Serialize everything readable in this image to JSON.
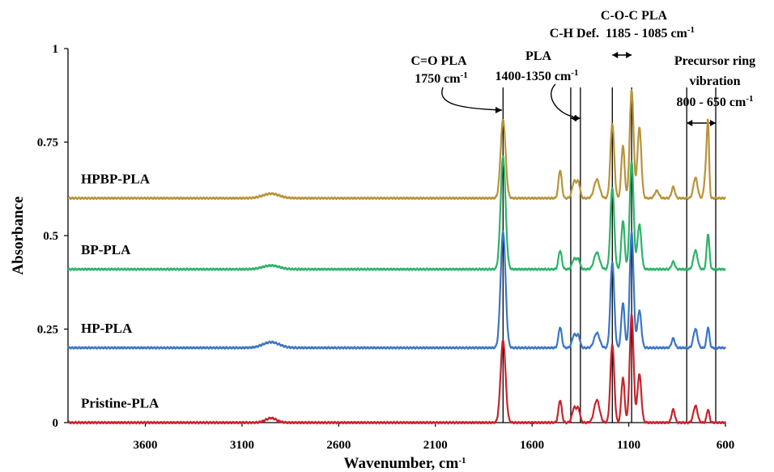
{
  "chart_data": {
    "type": "line",
    "xlabel": "Wavenumber, cm",
    "xlabel_sup": "-1",
    "ylabel": "Absorbance",
    "xlim": [
      4000,
      600
    ],
    "ylim": [
      0,
      1
    ],
    "x_reversed": true,
    "xticks": [
      3600,
      3100,
      2600,
      2100,
      1600,
      1100,
      600
    ],
    "yticks": [
      0,
      0.25,
      0.5,
      0.75,
      1
    ],
    "ytick_labels": [
      "0",
      "0.25",
      "0.5",
      "0.75",
      "1"
    ],
    "grid": false,
    "series": [
      {
        "name": "HPBP-PLA",
        "color": "#b8933a",
        "offset": 0.6,
        "peaks": [
          [
            2950,
            0.012,
            60
          ],
          [
            1750,
            0.21,
            18
          ],
          [
            1455,
            0.075,
            12
          ],
          [
            1382,
            0.045,
            15
          ],
          [
            1360,
            0.04,
            12
          ],
          [
            1265,
            0.05,
            20
          ],
          [
            1185,
            0.2,
            14
          ],
          [
            1130,
            0.14,
            12
          ],
          [
            1085,
            0.29,
            14
          ],
          [
            1045,
            0.19,
            14
          ],
          [
            955,
            0.02,
            15
          ],
          [
            870,
            0.03,
            12
          ],
          [
            755,
            0.055,
            15
          ],
          [
            700,
            0.08,
            12
          ],
          [
            690,
            0.17,
            8
          ]
        ]
      },
      {
        "name": "BP-PLA",
        "color": "#2db36a",
        "offset": 0.41,
        "peaks": [
          [
            2950,
            0.01,
            60
          ],
          [
            1750,
            0.3,
            18
          ],
          [
            1455,
            0.05,
            12
          ],
          [
            1382,
            0.028,
            15
          ],
          [
            1360,
            0.025,
            12
          ],
          [
            1265,
            0.045,
            20
          ],
          [
            1185,
            0.22,
            14
          ],
          [
            1130,
            0.13,
            12
          ],
          [
            1085,
            0.29,
            14
          ],
          [
            1045,
            0.12,
            14
          ],
          [
            870,
            0.02,
            12
          ],
          [
            755,
            0.05,
            15
          ],
          [
            690,
            0.095,
            10
          ]
        ]
      },
      {
        "name": "HP-PLA",
        "color": "#3a76c4",
        "offset": 0.2,
        "peaks": [
          [
            2950,
            0.015,
            60
          ],
          [
            1750,
            0.31,
            18
          ],
          [
            1455,
            0.055,
            12
          ],
          [
            1382,
            0.035,
            15
          ],
          [
            1360,
            0.03,
            12
          ],
          [
            1265,
            0.04,
            20
          ],
          [
            1185,
            0.23,
            14
          ],
          [
            1130,
            0.12,
            12
          ],
          [
            1085,
            0.31,
            14
          ],
          [
            1045,
            0.1,
            14
          ],
          [
            870,
            0.025,
            12
          ],
          [
            755,
            0.05,
            15
          ],
          [
            690,
            0.055,
            10
          ]
        ]
      },
      {
        "name": "Pristine-PLA",
        "color": "#c8242c",
        "offset": 0.0,
        "peaks": [
          [
            2950,
            0.012,
            40
          ],
          [
            1750,
            0.22,
            18
          ],
          [
            1455,
            0.06,
            12
          ],
          [
            1382,
            0.04,
            15
          ],
          [
            1360,
            0.035,
            12
          ],
          [
            1265,
            0.06,
            20
          ],
          [
            1185,
            0.21,
            14
          ],
          [
            1130,
            0.12,
            12
          ],
          [
            1085,
            0.29,
            14
          ],
          [
            1045,
            0.13,
            14
          ],
          [
            870,
            0.035,
            12
          ],
          [
            755,
            0.045,
            15
          ],
          [
            690,
            0.035,
            10
          ]
        ]
      }
    ],
    "vlines": [
      1750,
      1400,
      1350,
      1185,
      1085,
      800,
      650
    ],
    "annotations": [
      {
        "text": "C=O PLA",
        "line2": "1750 cm",
        "sup": "-1"
      },
      {
        "text": "C-H Def.",
        "line2": "PLA",
        "line3": "1400-1350 cm",
        "sup": "-1"
      },
      {
        "text": "C-O-C PLA",
        "line2": "1185 - 1085 cm",
        "sup": "-1"
      },
      {
        "text": "Precursor ring",
        "line2": "vibration",
        "line3": "800 - 650 cm",
        "sup": "-1"
      }
    ]
  }
}
